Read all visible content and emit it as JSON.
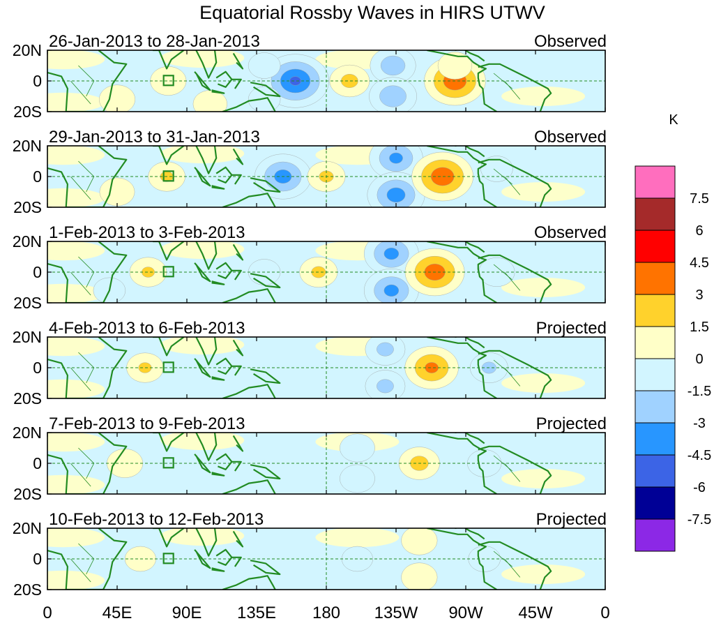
{
  "chart_data": {
    "type": "heatmap",
    "title": "Equatorial Rossby Waves in HIRS UTWV",
    "x_axis": {
      "ticks": [
        "0",
        "45E",
        "90E",
        "135E",
        "180",
        "135W",
        "90W",
        "45W",
        "0"
      ],
      "range_deg_east": [
        0,
        360
      ]
    },
    "y_axis": {
      "ticks": [
        "20N",
        "0",
        "20S"
      ],
      "range_deg": [
        -20,
        20
      ]
    },
    "panels": [
      {
        "date_range": "26-Jan-2013 to 28-Jan-2013",
        "status": "Observed",
        "blobs": [
          {
            "lon": 160,
            "lat": 0,
            "value": -4.6
          },
          {
            "lon": 195,
            "lat": 0,
            "value": 1.8
          },
          {
            "lon": 223,
            "lat": 10,
            "value": -2.4
          },
          {
            "lon": 223,
            "lat": -10,
            "value": -2.6
          },
          {
            "lon": 263,
            "lat": 0,
            "value": 4.0
          },
          {
            "lon": 263,
            "lat": 10,
            "value": 1.2
          },
          {
            "lon": 78,
            "lat": 0,
            "value": 1.4
          },
          {
            "lon": 105,
            "lat": -15,
            "value": 1.2
          },
          {
            "lon": 45,
            "lat": -12,
            "value": 1.4
          },
          {
            "lon": 140,
            "lat": 10,
            "value": -1.0
          },
          {
            "lon": 140,
            "lat": -12,
            "value": -1.0
          }
        ]
      },
      {
        "date_range": "29-Jan-2013 to 31-Jan-2013",
        "status": "Observed",
        "blobs": [
          {
            "lon": 152,
            "lat": 0,
            "value": -3.5
          },
          {
            "lon": 180,
            "lat": 0,
            "value": 1.6
          },
          {
            "lon": 225,
            "lat": 12,
            "value": -3.2
          },
          {
            "lon": 225,
            "lat": -12,
            "value": -3.6
          },
          {
            "lon": 255,
            "lat": 0,
            "value": 4.0
          },
          {
            "lon": 77,
            "lat": 0,
            "value": 1.5
          },
          {
            "lon": 45,
            "lat": -10,
            "value": 1.3
          },
          {
            "lon": 290,
            "lat": 5,
            "value": -1.0
          }
        ]
      },
      {
        "date_range": "1-Feb-2013 to 3-Feb-2013",
        "status": "Observed",
        "blobs": [
          {
            "lon": 222,
            "lat": 12,
            "value": -3.3
          },
          {
            "lon": 222,
            "lat": -12,
            "value": -3.3
          },
          {
            "lon": 250,
            "lat": 0,
            "value": 3.8
          },
          {
            "lon": 175,
            "lat": 0,
            "value": 1.6
          },
          {
            "lon": 65,
            "lat": 0,
            "value": 1.5
          },
          {
            "lon": 140,
            "lat": 0,
            "value": -1.0
          },
          {
            "lon": 290,
            "lat": 0,
            "value": -1.4
          },
          {
            "lon": 40,
            "lat": -12,
            "value": -1.0
          }
        ]
      },
      {
        "date_range": "4-Feb-2013 to 6-Feb-2013",
        "status": "Projected",
        "blobs": [
          {
            "lon": 248,
            "lat": 0,
            "value": 3.2
          },
          {
            "lon": 218,
            "lat": 12,
            "value": -1.8
          },
          {
            "lon": 218,
            "lat": -12,
            "value": -1.8
          },
          {
            "lon": 63,
            "lat": 0,
            "value": 1.5
          },
          {
            "lon": 285,
            "lat": 0,
            "value": -1.6
          }
        ]
      },
      {
        "date_range": "7-Feb-2013 to 9-Feb-2013",
        "status": "Projected",
        "blobs": [
          {
            "lon": 240,
            "lat": 0,
            "value": 1.9
          },
          {
            "lon": 200,
            "lat": 10,
            "value": -1.3
          },
          {
            "lon": 200,
            "lat": -10,
            "value": -1.3
          },
          {
            "lon": 50,
            "lat": 0,
            "value": 1.4
          },
          {
            "lon": 282,
            "lat": 0,
            "value": -1.2
          }
        ]
      },
      {
        "date_range": "10-Feb-2013 to 12-Feb-2013",
        "status": "Projected",
        "blobs": [
          {
            "lon": 240,
            "lat": 12,
            "value": 1.4
          },
          {
            "lon": 240,
            "lat": -12,
            "value": 1.4
          },
          {
            "lon": 200,
            "lat": 0,
            "value": -0.9
          },
          {
            "lon": 60,
            "lat": 0,
            "value": 0.9
          },
          {
            "lon": 282,
            "lat": 0,
            "value": -1.0
          }
        ]
      }
    ],
    "colorbar": {
      "unit": "K",
      "levels": [
        "7.5",
        "6",
        "4.5",
        "3",
        "1.5",
        "0",
        "-1.5",
        "-3",
        "-4.5",
        "-6",
        "-7.5"
      ],
      "colors": [
        "#ff6ebe",
        "#a52a2a",
        "#ff0000",
        "#ff7300",
        "#ffd22c",
        "#ffffc8",
        "#d2f5ff",
        "#a0d2ff",
        "#2896ff",
        "#3c64e6",
        "#000096",
        "#8c28e6"
      ]
    },
    "overlays": {
      "equator_line": "dashed",
      "date_line": "dashed at 180",
      "coastline_color": "#228b22",
      "reference_box": "square near 80E, 0"
    }
  }
}
